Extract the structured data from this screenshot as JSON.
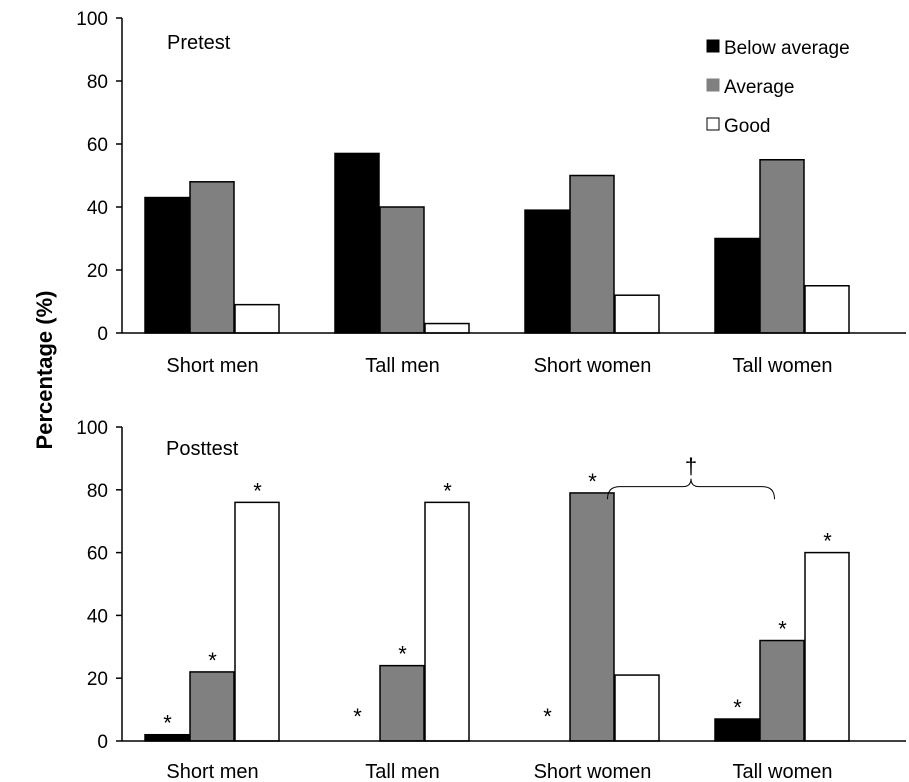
{
  "y_axis_label": "Percentage (%)",
  "legend": [
    {
      "label": "Below average",
      "color": "#000000"
    },
    {
      "label": "Average",
      "color": "#808080"
    },
    {
      "label": "Good",
      "color": "#ffffff"
    }
  ],
  "chart_data": [
    {
      "type": "bar",
      "title": "Pretest",
      "categories": [
        "Short men",
        "Tall men",
        "Short women",
        "Tall women"
      ],
      "ylim": [
        0,
        100
      ],
      "yticks": [
        0,
        20,
        40,
        60,
        80,
        100
      ],
      "legend_position": "top-right",
      "series": [
        {
          "name": "Below average",
          "values": [
            43,
            57,
            39,
            30
          ]
        },
        {
          "name": "Average",
          "values": [
            48,
            40,
            50,
            55
          ]
        },
        {
          "name": "Good",
          "values": [
            9,
            3,
            12,
            15
          ]
        }
      ]
    },
    {
      "type": "bar",
      "title": "Posttest",
      "categories": [
        "Short men",
        "Tall men",
        "Short women",
        "Tall women"
      ],
      "ylim": [
        0,
        100
      ],
      "yticks": [
        0,
        20,
        40,
        60,
        80,
        100
      ],
      "series": [
        {
          "name": "Below average",
          "values": [
            2,
            0,
            0,
            7
          ]
        },
        {
          "name": "Average",
          "values": [
            22,
            24,
            79,
            32
          ]
        },
        {
          "name": "Good",
          "values": [
            76,
            76,
            21,
            60
          ]
        }
      ],
      "significance_marker": "*",
      "significant_bars": [
        [
          true,
          true,
          true
        ],
        [
          true,
          true,
          true
        ],
        [
          true,
          true,
          false
        ],
        [
          true,
          true,
          true
        ]
      ],
      "bracket": {
        "marker": "†",
        "between": [
          "Short women",
          "Tall women"
        ]
      }
    }
  ]
}
